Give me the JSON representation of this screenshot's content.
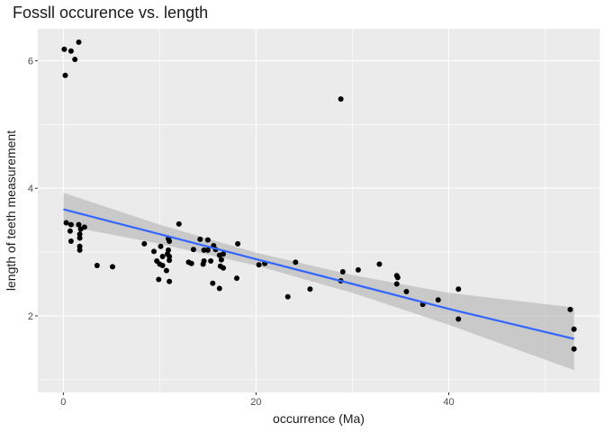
{
  "chart_data": {
    "type": "scatter",
    "title": "Fossll occurence vs. length",
    "xlabel": "occurrence (Ma)",
    "ylabel": "length of teeth measurement",
    "xlim": [
      -2.65,
      55.65
    ],
    "ylim": [
      0.8,
      6.5
    ],
    "x_ticks": [
      0,
      20,
      40
    ],
    "y_ticks": [
      2,
      4,
      6
    ],
    "grid": true,
    "background": "#ebebeb",
    "point_color": "#000000",
    "fit_line": {
      "method": "linear",
      "color": "#3366ff",
      "band_color": "#b3b3b3",
      "x_range": [
        0,
        53
      ],
      "points": [
        {
          "x": 0,
          "y": 3.67,
          "lower": 3.42,
          "upper": 3.93
        },
        {
          "x": 10,
          "y": 3.28,
          "lower": 3.13,
          "upper": 3.43
        },
        {
          "x": 20,
          "y": 2.89,
          "lower": 2.79,
          "upper": 2.99
        },
        {
          "x": 30,
          "y": 2.5,
          "lower": 2.36,
          "upper": 2.64
        },
        {
          "x": 40,
          "y": 2.11,
          "lower": 1.86,
          "upper": 2.36
        },
        {
          "x": 53,
          "y": 1.64,
          "lower": 1.15,
          "upper": 2.13
        }
      ]
    },
    "points": [
      {
        "x": 0.1,
        "y": 6.18
      },
      {
        "x": 0.8,
        "y": 6.15
      },
      {
        "x": 1.6,
        "y": 6.29
      },
      {
        "x": 1.2,
        "y": 6.02
      },
      {
        "x": 0.2,
        "y": 5.77
      },
      {
        "x": 28.8,
        "y": 5.4
      },
      {
        "x": 0.3,
        "y": 3.46
      },
      {
        "x": 0.8,
        "y": 3.43
      },
      {
        "x": 1.6,
        "y": 3.43
      },
      {
        "x": 2.2,
        "y": 3.39
      },
      {
        "x": 1.8,
        "y": 3.36
      },
      {
        "x": 0.7,
        "y": 3.33
      },
      {
        "x": 1.7,
        "y": 3.28
      },
      {
        "x": 1.7,
        "y": 3.22
      },
      {
        "x": 0.8,
        "y": 3.17
      },
      {
        "x": 1.7,
        "y": 3.09
      },
      {
        "x": 1.7,
        "y": 3.03
      },
      {
        "x": 3.5,
        "y": 2.79
      },
      {
        "x": 5.1,
        "y": 2.77
      },
      {
        "x": 8.4,
        "y": 3.13
      },
      {
        "x": 9.4,
        "y": 3.01
      },
      {
        "x": 10.1,
        "y": 3.09
      },
      {
        "x": 10.3,
        "y": 2.93
      },
      {
        "x": 10.9,
        "y": 3.21
      },
      {
        "x": 11.0,
        "y": 3.17
      },
      {
        "x": 10.9,
        "y": 3.03
      },
      {
        "x": 10.8,
        "y": 2.97
      },
      {
        "x": 11.0,
        "y": 2.93
      },
      {
        "x": 9.7,
        "y": 2.86
      },
      {
        "x": 10.0,
        "y": 2.81
      },
      {
        "x": 10.3,
        "y": 2.79
      },
      {
        "x": 10.7,
        "y": 2.71
      },
      {
        "x": 11.0,
        "y": 2.87
      },
      {
        "x": 9.9,
        "y": 2.57
      },
      {
        "x": 11.0,
        "y": 2.54
      },
      {
        "x": 12.0,
        "y": 3.44
      },
      {
        "x": 13.0,
        "y": 2.84
      },
      {
        "x": 13.3,
        "y": 2.82
      },
      {
        "x": 13.5,
        "y": 3.04
      },
      {
        "x": 14.2,
        "y": 3.2
      },
      {
        "x": 14.6,
        "y": 3.03
      },
      {
        "x": 14.6,
        "y": 2.86
      },
      {
        "x": 14.5,
        "y": 2.81
      },
      {
        "x": 15.0,
        "y": 3.19
      },
      {
        "x": 15.0,
        "y": 3.03
      },
      {
        "x": 15.3,
        "y": 2.86
      },
      {
        "x": 15.6,
        "y": 3.1
      },
      {
        "x": 15.8,
        "y": 3.04
      },
      {
        "x": 16.2,
        "y": 2.95
      },
      {
        "x": 16.4,
        "y": 2.88
      },
      {
        "x": 16.6,
        "y": 2.97
      },
      {
        "x": 16.3,
        "y": 2.78
      },
      {
        "x": 16.6,
        "y": 2.75
      },
      {
        "x": 15.5,
        "y": 2.51
      },
      {
        "x": 16.2,
        "y": 2.43
      },
      {
        "x": 18.1,
        "y": 3.13
      },
      {
        "x": 18.0,
        "y": 2.59
      },
      {
        "x": 20.3,
        "y": 2.8
      },
      {
        "x": 20.9,
        "y": 2.82
      },
      {
        "x": 23.3,
        "y": 2.3
      },
      {
        "x": 24.1,
        "y": 2.84
      },
      {
        "x": 25.6,
        "y": 2.42
      },
      {
        "x": 28.8,
        "y": 2.55
      },
      {
        "x": 29.0,
        "y": 2.69
      },
      {
        "x": 30.6,
        "y": 2.72
      },
      {
        "x": 32.8,
        "y": 2.81
      },
      {
        "x": 34.6,
        "y": 2.63
      },
      {
        "x": 34.7,
        "y": 2.6
      },
      {
        "x": 34.6,
        "y": 2.5
      },
      {
        "x": 35.6,
        "y": 2.38
      },
      {
        "x": 37.3,
        "y": 2.18
      },
      {
        "x": 38.9,
        "y": 2.25
      },
      {
        "x": 41.0,
        "y": 2.42
      },
      {
        "x": 41.0,
        "y": 1.95
      },
      {
        "x": 52.6,
        "y": 2.1
      },
      {
        "x": 53.0,
        "y": 1.79
      },
      {
        "x": 53.0,
        "y": 1.48
      }
    ]
  }
}
